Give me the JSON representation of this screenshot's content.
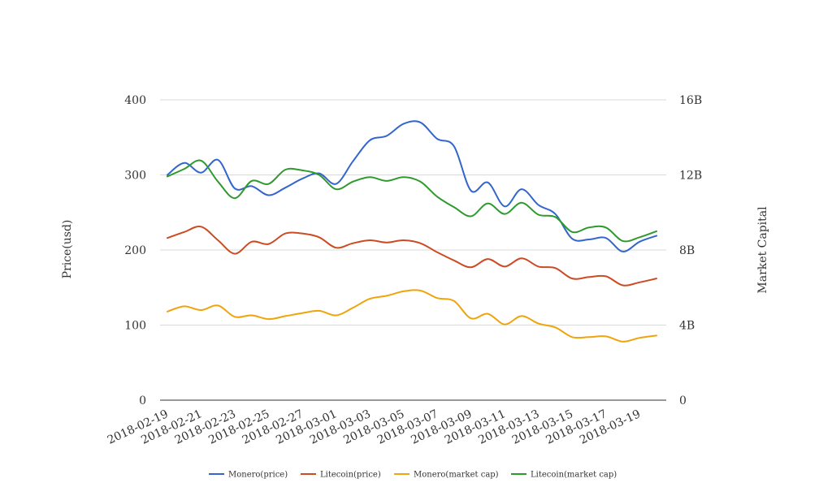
{
  "chart_data": {
    "type": "line",
    "x": [
      "2018-02-19",
      "2018-02-20",
      "2018-02-21",
      "2018-02-22",
      "2018-02-23",
      "2018-02-24",
      "2018-02-25",
      "2018-02-26",
      "2018-02-27",
      "2018-02-28",
      "2018-03-01",
      "2018-03-02",
      "2018-03-03",
      "2018-03-04",
      "2018-03-05",
      "2018-03-06",
      "2018-03-07",
      "2018-03-08",
      "2018-03-09",
      "2018-03-10",
      "2018-03-11",
      "2018-03-12",
      "2018-03-13",
      "2018-03-14",
      "2018-03-15",
      "2018-03-16",
      "2018-03-17",
      "2018-03-18",
      "2018-03-19",
      "2018-03-20"
    ],
    "x_tick_labels": [
      "2018-02-19",
      "2018-02-21",
      "2018-02-23",
      "2018-02-25",
      "2018-02-27",
      "2018-03-01",
      "2018-03-03",
      "2018-03-05",
      "2018-03-07",
      "2018-03-09",
      "2018-03-11",
      "2018-03-13",
      "2018-03-15",
      "2018-03-17",
      "2018-03-19"
    ],
    "y_left": {
      "label": "Price(usd)",
      "ylim": [
        0,
        400
      ],
      "ticks": [
        "0",
        "100",
        "200",
        "300",
        "400"
      ]
    },
    "y_right": {
      "label": "Market Capital",
      "ylim": [
        0,
        16000000000
      ],
      "ticks": [
        "0",
        "4B",
        "8B",
        "12B",
        "16B"
      ]
    },
    "grid": true,
    "legend_position": "bottom",
    "series": [
      {
        "name": "Monero(price)",
        "axis": "left",
        "color": "#3366cc",
        "values": [
          300,
          316,
          303,
          320,
          282,
          285,
          273,
          283,
          295,
          302,
          288,
          318,
          346,
          352,
          368,
          370,
          348,
          338,
          279,
          290,
          258,
          281,
          260,
          248,
          215,
          214,
          216,
          198,
          211,
          219
        ]
      },
      {
        "name": "Litecoin(price)",
        "axis": "left",
        "color": "#cc4b22",
        "values": [
          216,
          224,
          231,
          213,
          195,
          211,
          208,
          222,
          222,
          217,
          203,
          209,
          213,
          210,
          213,
          209,
          197,
          186,
          177,
          188,
          178,
          189,
          178,
          176,
          162,
          164,
          165,
          153,
          157,
          162
        ]
      },
      {
        "name": "Monero(market cap)",
        "axis": "right",
        "color": "#f0a30a",
        "values": [
          4720000000,
          5000000000,
          4800000000,
          5040000000,
          4440000000,
          4520000000,
          4320000000,
          4480000000,
          4640000000,
          4760000000,
          4520000000,
          4920000000,
          5400000000,
          5560000000,
          5800000000,
          5840000000,
          5440000000,
          5280000000,
          4360000000,
          4600000000,
          4040000000,
          4480000000,
          4080000000,
          3880000000,
          3360000000,
          3360000000,
          3400000000,
          3120000000,
          3320000000,
          3440000000
        ]
      },
      {
        "name": "Litecoin(market cap)",
        "axis": "right",
        "color": "#2e9a2e",
        "values": [
          11920000000,
          12320000000,
          12760000000,
          11640000000,
          10760000000,
          11680000000,
          11520000000,
          12280000000,
          12240000000,
          12000000000,
          11240000000,
          11640000000,
          11880000000,
          11680000000,
          11880000000,
          11640000000,
          10840000000,
          10280000000,
          9800000000,
          10480000000,
          9920000000,
          10520000000,
          9880000000,
          9760000000,
          8960000000,
          9200000000,
          9200000000,
          8480000000,
          8680000000,
          9000000000
        ]
      }
    ]
  }
}
